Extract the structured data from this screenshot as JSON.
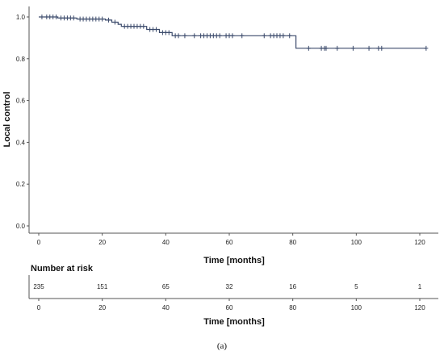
{
  "chart_data": {
    "type": "line",
    "step": true,
    "ylabel": "Local control",
    "xlabel": "Time [months]",
    "xlim": [
      0,
      125
    ],
    "ylim": [
      0,
      1.05
    ],
    "x_ticks": [
      0,
      20,
      40,
      60,
      80,
      100,
      120
    ],
    "y_ticks": [
      0.0,
      0.2,
      0.4,
      0.6,
      0.8,
      1.0
    ],
    "y_tick_labels": [
      "0.0",
      "0.2",
      "0.4",
      "0.6",
      "0.8",
      "1.0"
    ],
    "grid": false,
    "color": "#3b4a6b",
    "curve": [
      [
        0,
        1.0
      ],
      [
        6,
        1.0
      ],
      [
        6,
        0.995
      ],
      [
        12,
        0.995
      ],
      [
        12,
        0.99
      ],
      [
        21,
        0.99
      ],
      [
        21,
        0.985
      ],
      [
        23,
        0.985
      ],
      [
        23,
        0.975
      ],
      [
        25,
        0.975
      ],
      [
        25,
        0.965
      ],
      [
        26,
        0.965
      ],
      [
        26,
        0.955
      ],
      [
        34,
        0.955
      ],
      [
        34,
        0.94
      ],
      [
        38,
        0.94
      ],
      [
        38,
        0.925
      ],
      [
        42,
        0.925
      ],
      [
        42,
        0.91
      ],
      [
        81,
        0.91
      ],
      [
        81,
        0.85
      ],
      [
        122,
        0.85
      ]
    ],
    "censored": [
      [
        1,
        1.0
      ],
      [
        2.5,
        1.0
      ],
      [
        3.5,
        1.0
      ],
      [
        4.5,
        1.0
      ],
      [
        5.5,
        1.0
      ],
      [
        7,
        0.995
      ],
      [
        8,
        0.995
      ],
      [
        9,
        0.995
      ],
      [
        10,
        0.995
      ],
      [
        11,
        0.995
      ],
      [
        13,
        0.99
      ],
      [
        14,
        0.99
      ],
      [
        15,
        0.99
      ],
      [
        16,
        0.99
      ],
      [
        17,
        0.99
      ],
      [
        18,
        0.99
      ],
      [
        19,
        0.99
      ],
      [
        20,
        0.99
      ],
      [
        22,
        0.985
      ],
      [
        24,
        0.975
      ],
      [
        27,
        0.955
      ],
      [
        28,
        0.955
      ],
      [
        29,
        0.955
      ],
      [
        30,
        0.955
      ],
      [
        31,
        0.955
      ],
      [
        32,
        0.955
      ],
      [
        33,
        0.955
      ],
      [
        35,
        0.94
      ],
      [
        36,
        0.94
      ],
      [
        37,
        0.94
      ],
      [
        39,
        0.925
      ],
      [
        40,
        0.925
      ],
      [
        41,
        0.925
      ],
      [
        43,
        0.91
      ],
      [
        44,
        0.91
      ],
      [
        46,
        0.91
      ],
      [
        49,
        0.91
      ],
      [
        51,
        0.91
      ],
      [
        52,
        0.91
      ],
      [
        53,
        0.91
      ],
      [
        54,
        0.91
      ],
      [
        55,
        0.91
      ],
      [
        56,
        0.91
      ],
      [
        57,
        0.91
      ],
      [
        59,
        0.91
      ],
      [
        60,
        0.91
      ],
      [
        61,
        0.91
      ],
      [
        64,
        0.91
      ],
      [
        71,
        0.91
      ],
      [
        73,
        0.91
      ],
      [
        74,
        0.91
      ],
      [
        75,
        0.91
      ],
      [
        76,
        0.91
      ],
      [
        77,
        0.91
      ],
      [
        79,
        0.91
      ],
      [
        85,
        0.85
      ],
      [
        89,
        0.85
      ],
      [
        90,
        0.85
      ],
      [
        90.5,
        0.85
      ],
      [
        94,
        0.85
      ],
      [
        99,
        0.85
      ],
      [
        104,
        0.85
      ],
      [
        107,
        0.85
      ],
      [
        108,
        0.85
      ],
      [
        122,
        0.85
      ]
    ]
  },
  "risk_table": {
    "title": "Number at risk",
    "x": [
      0,
      20,
      40,
      60,
      80,
      100,
      120
    ],
    "values": [
      "235",
      "151",
      "65",
      "32",
      "16",
      "5",
      "1"
    ],
    "x_tick_labels": [
      "0",
      "20",
      "40",
      "60",
      "80",
      "100",
      "120"
    ],
    "xlabel": "Time [months]"
  },
  "caption": "(a)"
}
